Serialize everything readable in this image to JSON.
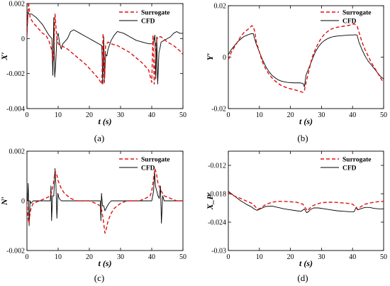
{
  "chart_data": [
    {
      "type": "line",
      "caption": "(a)",
      "ylabel": "X′",
      "xlabel": "t (s)",
      "xlim": [
        0,
        50
      ],
      "ylim": [
        -0.004,
        0.002
      ],
      "yticks": [
        -0.004,
        -0.002,
        0,
        0.002
      ],
      "ytick_labels": [
        "-0.004",
        "-0.002",
        "0",
        "0.002"
      ],
      "xticks": [
        0,
        10,
        20,
        30,
        40,
        50
      ],
      "grid": false,
      "legend": "top-right",
      "series": [
        {
          "name": "Surrogate",
          "color": "#e01010",
          "style": "dashed",
          "x": [
            0,
            0.5,
            1,
            2,
            3,
            4,
            5,
            6,
            7,
            8,
            8.5,
            9,
            9.5,
            10,
            11,
            12,
            13,
            15,
            17,
            19,
            21,
            23,
            24,
            24.4,
            24.8,
            25.2,
            26,
            27,
            29,
            31,
            33,
            35,
            37,
            39,
            40,
            40.4,
            40.8,
            41.3,
            42,
            43,
            45,
            47,
            49,
            50
          ],
          "y": [
            0.0002,
            0.0021,
            0.0012,
            0.0009,
            0.0007,
            0.0005,
            0.0003,
            0.0002,
            -0.0001,
            -0.0007,
            -0.0013,
            0.0014,
            0.0002,
            -0.0003,
            -0.0004,
            -0.0005,
            -0.0006,
            -0.0009,
            -0.0012,
            -0.0015,
            -0.0019,
            -0.0023,
            -0.0026,
            0.0003,
            -0.0026,
            -0.0004,
            -0.0002,
            -0.0003,
            -0.0004,
            -0.0006,
            -0.0008,
            -0.0011,
            -0.0014,
            -0.0018,
            -0.0025,
            0.0002,
            -0.0026,
            -0.0002,
            0.0001,
            0.0001,
            -0.0002,
            -0.0004,
            -0.0007,
            -0.0009
          ]
        },
        {
          "name": "CFD",
          "color": "#000000",
          "style": "solid",
          "x": [
            0,
            0.3,
            0.7,
            1.5,
            3,
            4,
            5,
            6,
            7,
            8,
            8.3,
            8.6,
            8.9,
            9.2,
            9.6,
            10,
            10.5,
            11,
            11.5,
            12,
            12.5,
            13,
            14,
            15,
            17,
            19,
            21,
            23,
            24,
            24.3,
            24.6,
            24.9,
            25.2,
            25.6,
            26,
            27,
            28,
            29,
            31,
            33,
            35,
            37,
            39,
            40.5,
            41,
            41.3,
            41.6,
            41.9,
            42.3,
            42.7,
            43,
            44,
            45,
            46,
            47,
            48,
            49,
            50
          ],
          "y": [
            0.0001,
            0.0015,
            0.0014,
            0.0014,
            0.0012,
            0.001,
            0.0008,
            0.0005,
            0.0002,
            0.0,
            -0.0021,
            0.0012,
            -0.0022,
            -0.0015,
            0.0001,
            0.0003,
            -0.0003,
            -0.0006,
            -0.0003,
            -0.0002,
            -0.0001,
            0.0,
            0.0004,
            0.0005,
            0.0003,
            0.0001,
            -0.0001,
            -0.0003,
            -0.0004,
            -0.0026,
            0.0001,
            -0.0023,
            -0.0009,
            -0.001,
            -0.0006,
            -0.0001,
            0.0002,
            0.0004,
            0.0003,
            0.0001,
            -0.0001,
            -0.0002,
            -0.0003,
            -0.0003,
            0.0002,
            -0.0023,
            0.0001,
            -0.0026,
            -0.0008,
            -0.0005,
            -0.0002,
            -0.0001,
            0.0,
            0.0001,
            0.0003,
            0.0004,
            0.0003,
            0.0003
          ]
        }
      ]
    },
    {
      "type": "line",
      "caption": "(b)",
      "ylabel": "Y′",
      "xlabel": "t (s)",
      "xlim": [
        0,
        50
      ],
      "ylim": [
        -0.02,
        0.02
      ],
      "yticks": [
        -0.02,
        0,
        0.02
      ],
      "ytick_labels": [
        "-0.02",
        "0",
        "0.02"
      ],
      "xticks": [
        0,
        10,
        20,
        30,
        40,
        50
      ],
      "grid": false,
      "legend": "top-right",
      "series": [
        {
          "name": "Surrogate",
          "color": "#e01010",
          "style": "dashed",
          "x": [
            0,
            1,
            2,
            3,
            4,
            5,
            6,
            7,
            7.5,
            8,
            8.5,
            9,
            10,
            11,
            12,
            13,
            14,
            15,
            16,
            17,
            18,
            19,
            20,
            21,
            22,
            23,
            24,
            24.5,
            25,
            26,
            27,
            28,
            29,
            30,
            31,
            32,
            33,
            34,
            35,
            36,
            37,
            38,
            39,
            40,
            40.5,
            41,
            41.5,
            42,
            43,
            44,
            45,
            46,
            47,
            48,
            49,
            50
          ],
          "y": [
            -0.001,
            0.002,
            0.004,
            0.006,
            0.008,
            0.0095,
            0.0105,
            0.0115,
            0.0122,
            0.012,
            0.01,
            0.006,
            0.002,
            -0.002,
            -0.0045,
            -0.0065,
            -0.008,
            -0.0092,
            -0.0102,
            -0.011,
            -0.0115,
            -0.012,
            -0.0123,
            -0.0126,
            -0.0129,
            -0.0133,
            -0.0137,
            -0.013,
            -0.01,
            -0.005,
            0.0,
            0.003,
            0.0055,
            0.0075,
            0.009,
            0.01,
            0.0108,
            0.0113,
            0.0116,
            0.0118,
            0.012,
            0.0122,
            0.0124,
            0.0127,
            0.013,
            0.0125,
            0.012,
            0.01,
            0.006,
            0.003,
            0.0005,
            -0.002,
            -0.004,
            -0.006,
            -0.008,
            -0.01
          ]
        },
        {
          "name": "CFD",
          "color": "#000000",
          "style": "solid",
          "x": [
            0,
            1,
            2,
            3,
            4,
            5,
            6,
            7,
            8,
            8.5,
            9,
            10,
            11,
            12,
            13,
            14,
            15,
            16,
            17,
            18,
            19,
            20,
            21,
            22,
            23,
            24,
            24.5,
            25,
            26,
            27,
            28,
            29,
            30,
            31,
            32,
            33,
            34,
            35,
            36,
            37,
            38,
            39,
            40,
            41,
            41.5,
            42,
            43,
            44,
            45,
            46,
            47,
            48,
            49,
            50
          ],
          "y": [
            0.001,
            0.003,
            0.0045,
            0.006,
            0.007,
            0.008,
            0.0085,
            0.009,
            0.0092,
            0.007,
            0.005,
            0.002,
            -0.001,
            -0.0035,
            -0.0055,
            -0.007,
            -0.008,
            -0.0088,
            -0.0093,
            -0.0096,
            -0.0098,
            -0.0099,
            -0.01,
            -0.01,
            -0.01,
            -0.0102,
            -0.0115,
            -0.007,
            -0.004,
            -0.001,
            0.002,
            0.004,
            0.0055,
            0.0065,
            0.0072,
            0.0077,
            0.008,
            0.0082,
            0.0083,
            0.0084,
            0.0085,
            0.0086,
            0.0086,
            0.0087,
            0.0085,
            0.006,
            0.003,
            0.0005,
            -0.0015,
            -0.003,
            -0.0045,
            -0.006,
            -0.0075,
            -0.0085
          ]
        }
      ]
    },
    {
      "type": "line",
      "caption": "(c)",
      "ylabel": "N′",
      "xlabel": "t (s)",
      "xlim": [
        0,
        50
      ],
      "ylim": [
        -0.002,
        0.002
      ],
      "yticks": [
        -0.002,
        0,
        0.002
      ],
      "ytick_labels": [
        "-0.002",
        "0",
        "0.002"
      ],
      "xticks": [
        0,
        10,
        20,
        30,
        40,
        50
      ],
      "grid": false,
      "legend": "top-right",
      "series": [
        {
          "name": "Surrogate",
          "color": "#e01010",
          "style": "dashed",
          "x": [
            0,
            0.3,
            0.6,
            0.9,
            1.3,
            2,
            4,
            6,
            7.5,
            8,
            8.5,
            9,
            9.5,
            10,
            11,
            12,
            14,
            16,
            18,
            20,
            22,
            23.5,
            24,
            24.5,
            25,
            25.5,
            26,
            27,
            28,
            30,
            32,
            34,
            36,
            38,
            39.5,
            40,
            40.5,
            41,
            41.5,
            42,
            43,
            44,
            46,
            48,
            50
          ],
          "y": [
            0.0,
            -0.0006,
            -0.0009,
            -0.0006,
            -0.0003,
            -0.0001,
            0.0,
            0.0001,
            0.0002,
            0.0004,
            0.0007,
            0.0012,
            0.0011,
            0.0008,
            0.0005,
            0.0003,
            0.0001,
            0.0,
            0.0,
            0.0,
            -0.0001,
            -0.0002,
            -0.0004,
            -0.0008,
            -0.0013,
            -0.0011,
            -0.0008,
            -0.0005,
            -0.0003,
            -0.0001,
            0.0,
            0.0,
            0.0,
            0.0001,
            0.0002,
            0.0004,
            0.0008,
            0.0013,
            0.0011,
            0.0007,
            0.0004,
            0.0002,
            0.0001,
            0.0,
            0.0
          ]
        },
        {
          "name": "CFD",
          "color": "#000000",
          "style": "solid",
          "x": [
            0,
            0.2,
            0.4,
            0.7,
            1.0,
            1.3,
            2,
            4,
            6,
            7.5,
            7.7,
            7.9,
            8.2,
            8.6,
            9,
            9.3,
            9.6,
            9.9,
            10.3,
            11,
            12,
            14,
            16,
            18,
            20,
            22,
            23.5,
            23.7,
            23.9,
            24.2,
            24.6,
            25,
            25.4,
            25.8,
            26.3,
            27,
            28,
            30,
            34,
            38,
            40,
            40.6,
            40.9,
            41.2,
            41.6,
            42,
            42.4,
            42.8,
            43.1,
            43.5,
            44,
            46,
            48,
            50
          ],
          "y": [
            0.0,
            0.0,
            0.0007,
            -0.001,
            0.0,
            -0.0001,
            0.0,
            0.0,
            0.0,
            0.0,
            0.0006,
            -0.0008,
            0.0002,
            0.0002,
            0.0013,
            0.0006,
            -0.0007,
            0.0003,
            0.0001,
            0.0,
            0.0,
            0.0,
            0.0,
            0.0,
            0.0,
            0.0,
            0.0,
            -0.0008,
            0.0003,
            -0.0002,
            -0.0002,
            -0.0004,
            -0.0003,
            -0.0002,
            -0.0001,
            0.0,
            0.0,
            0.0,
            0.0,
            0.0,
            0.0,
            0.0004,
            0.0012,
            0.0006,
            0.0004,
            0.0002,
            0.0001,
            0.0006,
            -0.0009,
            0.0002,
            0.0,
            0.0,
            0.0,
            0.0
          ]
        }
      ]
    },
    {
      "type": "line",
      "caption": "(d)",
      "ylabel": "X_P′",
      "xlabel": "t (s)",
      "xlim": [
        0,
        50
      ],
      "ylim": [
        -0.03,
        -0.009
      ],
      "yticks": [
        -0.03,
        -0.024,
        -0.018,
        -0.012
      ],
      "ytick_labels": [
        "-0.03",
        "-0.024",
        "-0.018",
        "-0.012"
      ],
      "xticks": [
        0,
        10,
        20,
        30,
        40,
        50
      ],
      "grid": false,
      "legend": "top-right",
      "series": [
        {
          "name": "Surrogate",
          "color": "#e01010",
          "style": "dashed",
          "x": [
            0,
            2,
            4,
            6,
            7.5,
            8.5,
            9.5,
            10.5,
            12,
            14,
            16,
            18,
            20,
            22,
            24,
            25,
            25.5,
            26,
            27,
            28,
            30,
            32,
            34,
            36,
            38,
            40,
            41,
            41.5,
            42.5,
            44,
            46,
            48,
            50
          ],
          "y": [
            -0.0178,
            -0.0185,
            -0.019,
            -0.0196,
            -0.02,
            -0.0206,
            -0.0213,
            -0.021,
            -0.0203,
            -0.0198,
            -0.0196,
            -0.0196,
            -0.0197,
            -0.0198,
            -0.0202,
            -0.0212,
            -0.0216,
            -0.0212,
            -0.0206,
            -0.0203,
            -0.0199,
            -0.0198,
            -0.0198,
            -0.0199,
            -0.02,
            -0.0202,
            -0.0208,
            -0.0213,
            -0.0208,
            -0.0202,
            -0.0199,
            -0.0197,
            -0.0196
          ]
        },
        {
          "name": "CFD",
          "color": "#000000",
          "style": "solid",
          "x": [
            0,
            2,
            4,
            6,
            7.5,
            8.5,
            9.3,
            10.3,
            12,
            14,
            16,
            18,
            20,
            22,
            23.5,
            24.5,
            25.2,
            25.8,
            26.5,
            27.5,
            29,
            31,
            33,
            35,
            37,
            39,
            40.5,
            41.2,
            41.7,
            42.5,
            44,
            45.5,
            47,
            48.5,
            50
          ],
          "y": [
            -0.0175,
            -0.0185,
            -0.0195,
            -0.0203,
            -0.0208,
            -0.0213,
            -0.0215,
            -0.0212,
            -0.0207,
            -0.0206,
            -0.0209,
            -0.0212,
            -0.0214,
            -0.0216,
            -0.0217,
            -0.0212,
            -0.022,
            -0.0218,
            -0.0213,
            -0.021,
            -0.021,
            -0.0212,
            -0.0214,
            -0.0216,
            -0.0217,
            -0.0218,
            -0.0218,
            -0.0208,
            -0.0214,
            -0.0212,
            -0.0209,
            -0.0209,
            -0.0211,
            -0.0212,
            -0.0212
          ]
        }
      ]
    }
  ]
}
